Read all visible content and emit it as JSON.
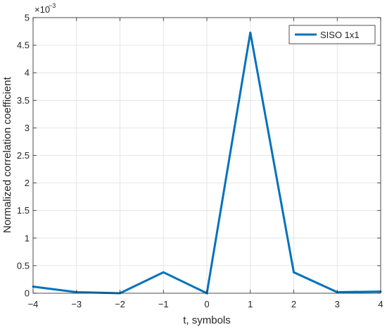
{
  "chart_data": {
    "type": "line",
    "title": "",
    "xlabel": "t, symbols",
    "ylabel": "Normalized correlation coefficient",
    "y_multiplier_base": "×10",
    "y_multiplier_exp": "−3",
    "xlim": [
      -4,
      4
    ],
    "ylim": [
      0,
      5
    ],
    "x_ticks": [
      -4,
      -3,
      -2,
      -1,
      0,
      1,
      2,
      3,
      4
    ],
    "x_tick_labels": [
      "−4",
      "−3",
      "−2",
      "−1",
      "0",
      "1",
      "2",
      "3",
      "4"
    ],
    "y_ticks": [
      0,
      0.5,
      1,
      1.5,
      2,
      2.5,
      3,
      3.5,
      4,
      4.5,
      5
    ],
    "y_tick_labels": [
      "0",
      "0.5",
      "1",
      "1.5",
      "2",
      "2.5",
      "3",
      "3.5",
      "4",
      "4.5",
      "5"
    ],
    "grid": true,
    "legend_position": "top-right",
    "series": [
      {
        "name": "SISO 1x1",
        "color": "#0072BD",
        "x": [
          -4,
          -3,
          -2,
          -1,
          0,
          1,
          2,
          3,
          4
        ],
        "values": [
          0.12,
          0.02,
          0.0,
          0.38,
          0.0,
          4.73,
          0.38,
          0.02,
          0.03
        ]
      }
    ]
  }
}
